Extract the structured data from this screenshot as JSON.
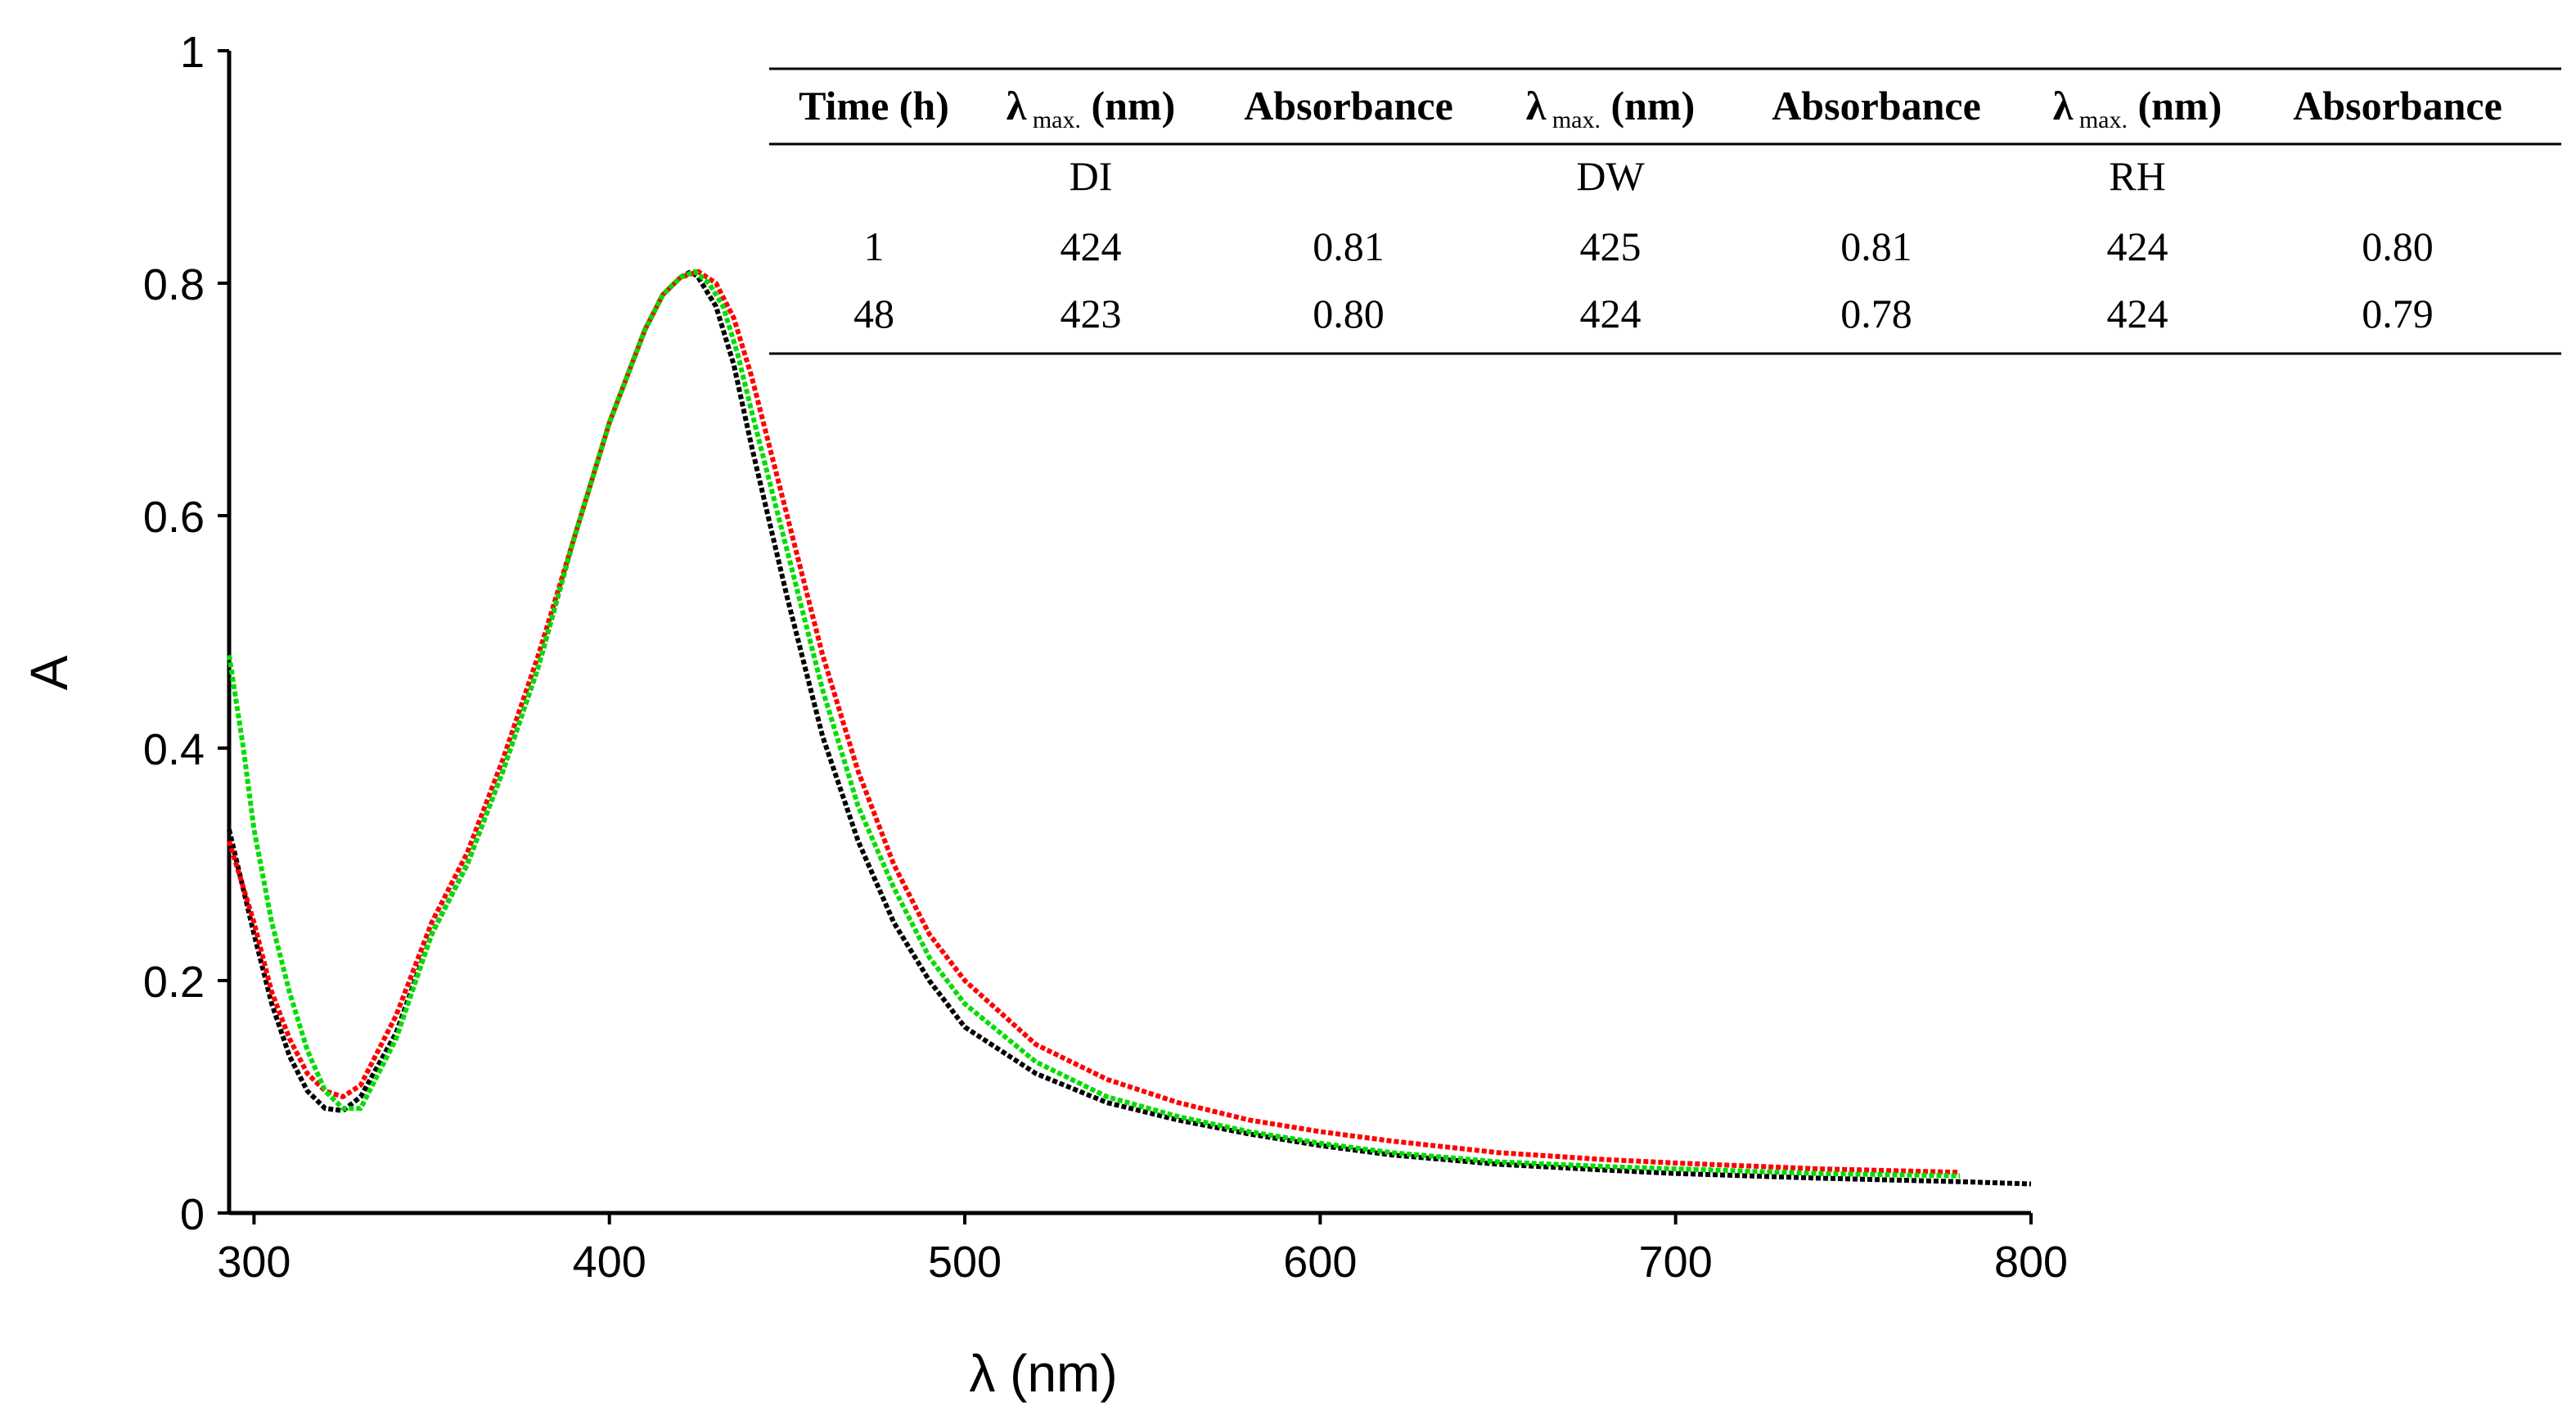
{
  "chart_data": {
    "type": "line",
    "title": "",
    "xlabel": "λ (nm)",
    "ylabel": "A",
    "xlim": [
      293,
      800
    ],
    "ylim": [
      0,
      1
    ],
    "x_ticks": [
      "300",
      "400",
      "500",
      "600",
      "700",
      "800"
    ],
    "y_ticks": [
      "0",
      "0.2",
      "0.4",
      "0.6",
      "0.8",
      "1"
    ],
    "grid": false,
    "series": [
      {
        "name": "DI (black)",
        "color": "#000000",
        "x": [
          293,
          300,
          305,
          310,
          315,
          320,
          325,
          330,
          340,
          350,
          360,
          370,
          380,
          390,
          400,
          410,
          415,
          420,
          423,
          425,
          430,
          435,
          440,
          450,
          460,
          470,
          480,
          490,
          500,
          520,
          540,
          560,
          580,
          600,
          620,
          650,
          680,
          700,
          740,
          780,
          800
        ],
        "y": [
          0.33,
          0.24,
          0.18,
          0.135,
          0.105,
          0.09,
          0.088,
          0.1,
          0.155,
          0.24,
          0.3,
          0.38,
          0.47,
          0.58,
          0.68,
          0.76,
          0.79,
          0.805,
          0.81,
          0.805,
          0.78,
          0.73,
          0.66,
          0.53,
          0.41,
          0.32,
          0.25,
          0.2,
          0.16,
          0.12,
          0.095,
          0.08,
          0.068,
          0.058,
          0.05,
          0.042,
          0.037,
          0.034,
          0.03,
          0.027,
          0.025
        ]
      },
      {
        "name": "DW (red)",
        "color": "#ff0000",
        "x": [
          293,
          300,
          305,
          310,
          315,
          320,
          325,
          330,
          340,
          350,
          360,
          370,
          380,
          390,
          400,
          410,
          415,
          420,
          425,
          430,
          435,
          440,
          450,
          460,
          470,
          480,
          490,
          500,
          520,
          540,
          560,
          580,
          600,
          620,
          650,
          680,
          700,
          740,
          780
        ],
        "y": [
          0.32,
          0.25,
          0.19,
          0.15,
          0.12,
          0.105,
          0.1,
          0.11,
          0.17,
          0.25,
          0.31,
          0.39,
          0.48,
          0.58,
          0.68,
          0.76,
          0.79,
          0.805,
          0.81,
          0.8,
          0.77,
          0.72,
          0.6,
          0.48,
          0.38,
          0.3,
          0.24,
          0.2,
          0.145,
          0.115,
          0.095,
          0.08,
          0.07,
          0.062,
          0.052,
          0.046,
          0.043,
          0.038,
          0.035
        ]
      },
      {
        "name": "RH (green)",
        "color": "#00dd00",
        "x": [
          293,
          297,
          300,
          305,
          310,
          315,
          320,
          325,
          330,
          340,
          350,
          360,
          370,
          380,
          390,
          400,
          410,
          415,
          420,
          424,
          428,
          432,
          436,
          440,
          450,
          460,
          470,
          480,
          490,
          500,
          520,
          540,
          560,
          580,
          600,
          620,
          650,
          680,
          700,
          740,
          780
        ],
        "y": [
          0.48,
          0.4,
          0.33,
          0.25,
          0.19,
          0.14,
          0.105,
          0.09,
          0.09,
          0.15,
          0.24,
          0.3,
          0.38,
          0.47,
          0.58,
          0.68,
          0.76,
          0.79,
          0.805,
          0.81,
          0.8,
          0.78,
          0.74,
          0.69,
          0.57,
          0.45,
          0.35,
          0.28,
          0.22,
          0.18,
          0.13,
          0.1,
          0.083,
          0.07,
          0.06,
          0.052,
          0.044,
          0.04,
          0.038,
          0.034,
          0.032
        ]
      }
    ]
  },
  "table": {
    "headers": [
      {
        "main": "Time (h)",
        "sub": ""
      },
      {
        "main": "λ",
        "sub": "max.",
        "tail": " (nm)"
      },
      {
        "main": "Absorbance",
        "sub": ""
      },
      {
        "main": "λ",
        "sub": "max.",
        "tail": " (nm)"
      },
      {
        "main": "Absorbance",
        "sub": ""
      },
      {
        "main": "λ",
        "sub": "max.",
        "tail": " (nm)"
      },
      {
        "main": "Absorbance",
        "sub": ""
      }
    ],
    "groups": [
      "DI",
      "DW",
      "RH"
    ],
    "rows": [
      [
        "1",
        "424",
        "0.81",
        "425",
        "0.81",
        "424",
        "0.80"
      ],
      [
        "48",
        "423",
        "0.80",
        "424",
        "0.78",
        "424",
        "0.79"
      ]
    ]
  }
}
